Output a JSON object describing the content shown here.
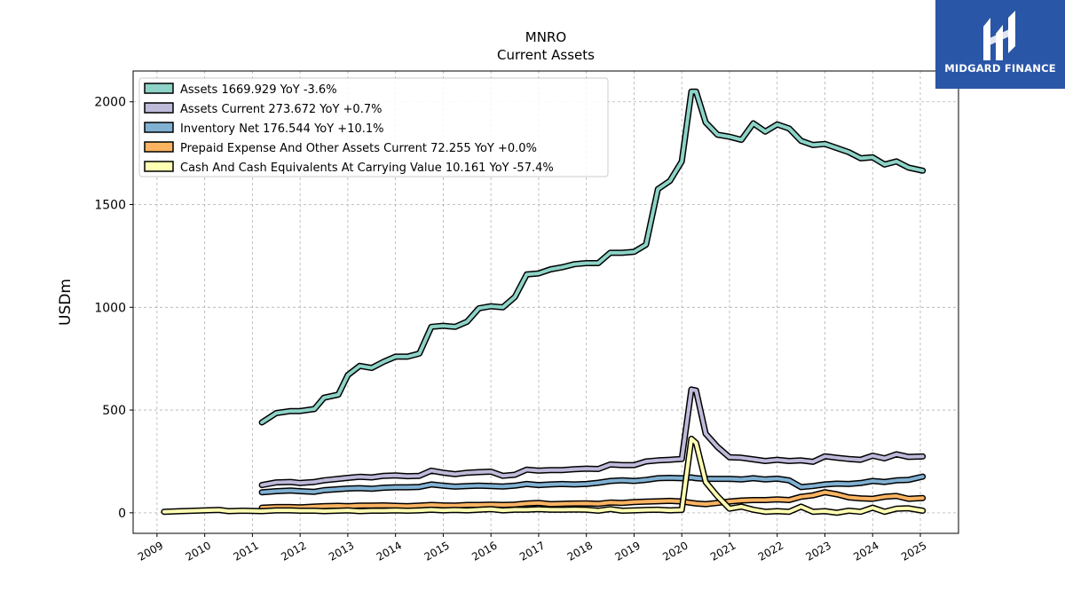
{
  "header": {
    "ticker": "MNRO",
    "subtitle": "Current  Assets"
  },
  "logo": {
    "text": "MIDGARD FINANCE",
    "icon": "midgard-logo-icon",
    "color": "#2a56a8"
  },
  "chart_data": {
    "type": "line",
    "title": "MNRO",
    "subtitle": "Current  Assets",
    "xlabel": "",
    "ylabel": "USDm",
    "xlim": [
      2008.5,
      2025.8
    ],
    "ylim": [
      -100,
      2150
    ],
    "xticks": [
      "2009",
      "2010",
      "2011",
      "2012",
      "2013",
      "2014",
      "2015",
      "2016",
      "2017",
      "2018",
      "2019",
      "2020",
      "2021",
      "2022",
      "2023",
      "2024",
      "2025"
    ],
    "yticks": [
      0,
      500,
      1000,
      1500,
      2000
    ],
    "grid": true,
    "legend_position": "top-left",
    "series": [
      {
        "name": "Assets",
        "legend": "Assets  1669.929 YoY -3.6%",
        "color": "#8dd3c7",
        "points": [
          [
            2011.2,
            440
          ],
          [
            2011.5,
            485
          ],
          [
            2011.8,
            495
          ],
          [
            2012.0,
            495
          ],
          [
            2012.3,
            505
          ],
          [
            2012.5,
            560
          ],
          [
            2012.8,
            575
          ],
          [
            2013.0,
            670
          ],
          [
            2013.25,
            715
          ],
          [
            2013.5,
            705
          ],
          [
            2013.75,
            735
          ],
          [
            2014.0,
            760
          ],
          [
            2014.25,
            760
          ],
          [
            2014.5,
            775
          ],
          [
            2014.75,
            905
          ],
          [
            2015.0,
            910
          ],
          [
            2015.25,
            905
          ],
          [
            2015.5,
            930
          ],
          [
            2015.75,
            995
          ],
          [
            2016.0,
            1005
          ],
          [
            2016.25,
            1000
          ],
          [
            2016.5,
            1050
          ],
          [
            2016.75,
            1160
          ],
          [
            2017.0,
            1165
          ],
          [
            2017.25,
            1185
          ],
          [
            2017.5,
            1195
          ],
          [
            2017.75,
            1210
          ],
          [
            2018.0,
            1215
          ],
          [
            2018.25,
            1215
          ],
          [
            2018.5,
            1265
          ],
          [
            2018.75,
            1265
          ],
          [
            2019.0,
            1270
          ],
          [
            2019.25,
            1305
          ],
          [
            2019.5,
            1575
          ],
          [
            2019.75,
            1615
          ],
          [
            2020.0,
            1710
          ],
          [
            2020.2,
            2050
          ],
          [
            2020.3,
            2050
          ],
          [
            2020.5,
            1900
          ],
          [
            2020.75,
            1840
          ],
          [
            2021.0,
            1830
          ],
          [
            2021.25,
            1815
          ],
          [
            2021.5,
            1895
          ],
          [
            2021.75,
            1855
          ],
          [
            2022.0,
            1890
          ],
          [
            2022.25,
            1870
          ],
          [
            2022.5,
            1810
          ],
          [
            2022.75,
            1790
          ],
          [
            2023.0,
            1795
          ],
          [
            2023.25,
            1775
          ],
          [
            2023.5,
            1755
          ],
          [
            2023.75,
            1725
          ],
          [
            2024.0,
            1730
          ],
          [
            2024.25,
            1695
          ],
          [
            2024.5,
            1710
          ],
          [
            2024.75,
            1680
          ],
          [
            2025.05,
            1665
          ]
        ]
      },
      {
        "name": "Assets Current",
        "legend": "Assets Current  273.672 YoY +0.7%",
        "color": "#bebada",
        "points": [
          [
            2011.2,
            135
          ],
          [
            2011.5,
            148
          ],
          [
            2011.8,
            150
          ],
          [
            2012.0,
            145
          ],
          [
            2012.3,
            150
          ],
          [
            2012.5,
            158
          ],
          [
            2012.8,
            165
          ],
          [
            2013.0,
            170
          ],
          [
            2013.25,
            175
          ],
          [
            2013.5,
            172
          ],
          [
            2013.75,
            180
          ],
          [
            2014.0,
            182
          ],
          [
            2014.25,
            178
          ],
          [
            2014.5,
            180
          ],
          [
            2014.75,
            205
          ],
          [
            2015.0,
            195
          ],
          [
            2015.25,
            188
          ],
          [
            2015.5,
            195
          ],
          [
            2015.75,
            198
          ],
          [
            2016.0,
            200
          ],
          [
            2016.25,
            180
          ],
          [
            2016.5,
            185
          ],
          [
            2016.75,
            210
          ],
          [
            2017.0,
            205
          ],
          [
            2017.25,
            208
          ],
          [
            2017.5,
            208
          ],
          [
            2017.75,
            212
          ],
          [
            2018.0,
            215
          ],
          [
            2018.25,
            213
          ],
          [
            2018.5,
            235
          ],
          [
            2018.75,
            232
          ],
          [
            2019.0,
            232
          ],
          [
            2019.25,
            250
          ],
          [
            2019.5,
            255
          ],
          [
            2019.75,
            258
          ],
          [
            2020.0,
            262
          ],
          [
            2020.2,
            600
          ],
          [
            2020.3,
            595
          ],
          [
            2020.5,
            385
          ],
          [
            2020.75,
            320
          ],
          [
            2021.0,
            270
          ],
          [
            2021.25,
            268
          ],
          [
            2021.5,
            260
          ],
          [
            2021.75,
            252
          ],
          [
            2022.0,
            258
          ],
          [
            2022.25,
            252
          ],
          [
            2022.5,
            255
          ],
          [
            2022.75,
            248
          ],
          [
            2023.0,
            275
          ],
          [
            2023.25,
            268
          ],
          [
            2023.5,
            262
          ],
          [
            2023.75,
            258
          ],
          [
            2024.0,
            278
          ],
          [
            2024.25,
            265
          ],
          [
            2024.5,
            285
          ],
          [
            2024.75,
            272
          ],
          [
            2025.05,
            274
          ]
        ]
      },
      {
        "name": "Inventory Net",
        "legend": "Inventory Net  176.544 YoY +10.1%",
        "color": "#80b1d3",
        "points": [
          [
            2011.2,
            100
          ],
          [
            2011.5,
            105
          ],
          [
            2011.8,
            108
          ],
          [
            2012.0,
            105
          ],
          [
            2012.3,
            102
          ],
          [
            2012.5,
            110
          ],
          [
            2012.8,
            115
          ],
          [
            2013.0,
            118
          ],
          [
            2013.25,
            120
          ],
          [
            2013.5,
            117
          ],
          [
            2013.75,
            122
          ],
          [
            2014.0,
            124
          ],
          [
            2014.25,
            124
          ],
          [
            2014.5,
            126
          ],
          [
            2014.75,
            138
          ],
          [
            2015.0,
            132
          ],
          [
            2015.25,
            127
          ],
          [
            2015.5,
            130
          ],
          [
            2015.75,
            132
          ],
          [
            2016.0,
            130
          ],
          [
            2016.25,
            128
          ],
          [
            2016.5,
            132
          ],
          [
            2016.75,
            140
          ],
          [
            2017.0,
            135
          ],
          [
            2017.25,
            138
          ],
          [
            2017.5,
            140
          ],
          [
            2017.75,
            138
          ],
          [
            2018.0,
            140
          ],
          [
            2018.25,
            146
          ],
          [
            2018.5,
            155
          ],
          [
            2018.75,
            158
          ],
          [
            2019.0,
            155
          ],
          [
            2019.25,
            160
          ],
          [
            2019.5,
            168
          ],
          [
            2019.75,
            170
          ],
          [
            2020.0,
            168
          ],
          [
            2020.2,
            172
          ],
          [
            2020.3,
            168
          ],
          [
            2020.5,
            165
          ],
          [
            2020.75,
            165
          ],
          [
            2021.0,
            165
          ],
          [
            2021.25,
            162
          ],
          [
            2021.5,
            168
          ],
          [
            2021.75,
            162
          ],
          [
            2022.0,
            166
          ],
          [
            2022.25,
            158
          ],
          [
            2022.5,
            125
          ],
          [
            2022.75,
            130
          ],
          [
            2023.0,
            138
          ],
          [
            2023.25,
            142
          ],
          [
            2023.5,
            140
          ],
          [
            2023.75,
            145
          ],
          [
            2024.0,
            155
          ],
          [
            2024.25,
            150
          ],
          [
            2024.5,
            158
          ],
          [
            2024.75,
            160
          ],
          [
            2025.05,
            176
          ]
        ]
      },
      {
        "name": "Prepaid Expense And Other Assets Current",
        "legend": "Prepaid Expense And Other Assets Current  72.255 YoY +0.0%",
        "color": "#fdb462",
        "points": [
          [
            2011.2,
            25
          ],
          [
            2011.5,
            28
          ],
          [
            2011.8,
            28
          ],
          [
            2012.0,
            26
          ],
          [
            2012.3,
            30
          ],
          [
            2012.5,
            32
          ],
          [
            2012.8,
            34
          ],
          [
            2013.0,
            32
          ],
          [
            2013.25,
            35
          ],
          [
            2013.5,
            35
          ],
          [
            2013.75,
            36
          ],
          [
            2014.0,
            34
          ],
          [
            2014.25,
            32
          ],
          [
            2014.5,
            35
          ],
          [
            2014.75,
            38
          ],
          [
            2015.0,
            36
          ],
          [
            2015.25,
            35
          ],
          [
            2015.5,
            38
          ],
          [
            2015.75,
            38
          ],
          [
            2016.0,
            40
          ],
          [
            2016.25,
            38
          ],
          [
            2016.5,
            40
          ],
          [
            2016.75,
            45
          ],
          [
            2017.0,
            48
          ],
          [
            2017.25,
            42
          ],
          [
            2017.5,
            44
          ],
          [
            2017.75,
            45
          ],
          [
            2018.0,
            46
          ],
          [
            2018.25,
            44
          ],
          [
            2018.5,
            50
          ],
          [
            2018.75,
            48
          ],
          [
            2019.0,
            52
          ],
          [
            2019.25,
            54
          ],
          [
            2019.5,
            56
          ],
          [
            2019.75,
            58
          ],
          [
            2020.0,
            55
          ],
          [
            2020.2,
            48
          ],
          [
            2020.3,
            45
          ],
          [
            2020.5,
            42
          ],
          [
            2020.75,
            48
          ],
          [
            2021.0,
            55
          ],
          [
            2021.25,
            60
          ],
          [
            2021.5,
            62
          ],
          [
            2021.75,
            62
          ],
          [
            2022.0,
            65
          ],
          [
            2022.25,
            62
          ],
          [
            2022.5,
            78
          ],
          [
            2022.75,
            85
          ],
          [
            2023.0,
            100
          ],
          [
            2023.25,
            90
          ],
          [
            2023.5,
            75
          ],
          [
            2023.75,
            70
          ],
          [
            2024.0,
            68
          ],
          [
            2024.25,
            78
          ],
          [
            2024.5,
            82
          ],
          [
            2024.75,
            68
          ],
          [
            2025.05,
            72
          ]
        ]
      },
      {
        "name": "Cash And Cash Equivalents At Carrying Value",
        "legend": "Cash And Cash Equivalents At Carrying Value  10.161 YoY -57.4%",
        "color": "#ffffb3",
        "points": [
          [
            2009.15,
            5
          ],
          [
            2009.5,
            8
          ],
          [
            2009.8,
            10
          ],
          [
            2010.0,
            12
          ],
          [
            2010.3,
            14
          ],
          [
            2010.5,
            8
          ],
          [
            2010.8,
            10
          ],
          [
            2011.0,
            9
          ],
          [
            2011.2,
            8
          ],
          [
            2011.5,
            12
          ],
          [
            2011.8,
            12
          ],
          [
            2012.0,
            10
          ],
          [
            2012.3,
            10
          ],
          [
            2012.5,
            8
          ],
          [
            2012.8,
            10
          ],
          [
            2013.0,
            12
          ],
          [
            2013.25,
            8
          ],
          [
            2013.5,
            10
          ],
          [
            2013.75,
            10
          ],
          [
            2014.0,
            12
          ],
          [
            2014.25,
            10
          ],
          [
            2014.5,
            12
          ],
          [
            2014.75,
            15
          ],
          [
            2015.0,
            12
          ],
          [
            2015.25,
            14
          ],
          [
            2015.5,
            12
          ],
          [
            2015.75,
            15
          ],
          [
            2016.0,
            18
          ],
          [
            2016.25,
            12
          ],
          [
            2016.5,
            15
          ],
          [
            2016.75,
            15
          ],
          [
            2017.0,
            18
          ],
          [
            2017.25,
            15
          ],
          [
            2017.5,
            15
          ],
          [
            2017.75,
            16
          ],
          [
            2018.0,
            15
          ],
          [
            2018.25,
            10
          ],
          [
            2018.5,
            18
          ],
          [
            2018.75,
            10
          ],
          [
            2019.0,
            12
          ],
          [
            2019.25,
            14
          ],
          [
            2019.5,
            15
          ],
          [
            2019.75,
            12
          ],
          [
            2020.0,
            14
          ],
          [
            2020.2,
            360
          ],
          [
            2020.3,
            340
          ],
          [
            2020.5,
            150
          ],
          [
            2020.75,
            80
          ],
          [
            2021.0,
            20
          ],
          [
            2021.25,
            30
          ],
          [
            2021.5,
            15
          ],
          [
            2021.75,
            5
          ],
          [
            2022.0,
            8
          ],
          [
            2022.25,
            5
          ],
          [
            2022.5,
            30
          ],
          [
            2022.75,
            5
          ],
          [
            2023.0,
            8
          ],
          [
            2023.25,
            0
          ],
          [
            2023.5,
            10
          ],
          [
            2023.75,
            5
          ],
          [
            2024.0,
            25
          ],
          [
            2024.25,
            5
          ],
          [
            2024.5,
            20
          ],
          [
            2024.75,
            22
          ],
          [
            2025.05,
            10
          ]
        ]
      }
    ]
  }
}
